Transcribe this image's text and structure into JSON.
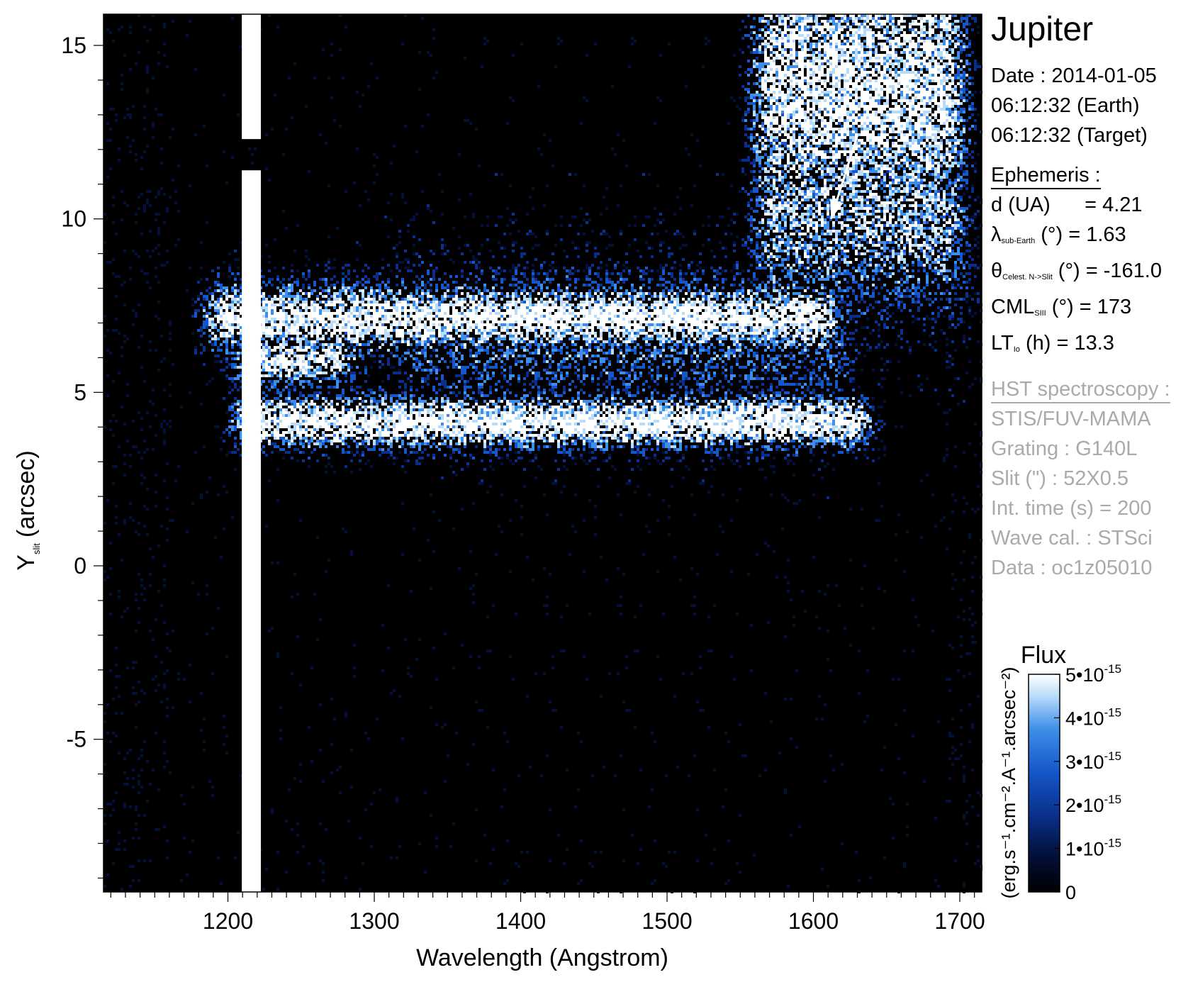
{
  "chart_data": {
    "type": "heatmap",
    "title": "Jupiter",
    "xlabel": "Wavelength (Angstrom)",
    "ylabel": "Y",
    "ylabel_sub": "slit",
    "ylabel_unit": "(arcsec)",
    "xlim": [
      1115,
      1715
    ],
    "ylim": [
      -9.4,
      15.9
    ],
    "x_ticks": [
      1200,
      1300,
      1400,
      1500,
      1600,
      1700
    ],
    "x_tick_labels": [
      "1200",
      "1300",
      "1400",
      "1500",
      "1600",
      "1700"
    ],
    "y_ticks": [
      15,
      10,
      5,
      0,
      -5
    ],
    "y_tick_labels": [
      "15",
      "10",
      "5",
      "0",
      "-5"
    ],
    "bands": [
      {
        "x0": 1190,
        "x1": 1650,
        "y": 4.2,
        "width": 0.55,
        "level": 1.0
      },
      {
        "x0": 1170,
        "x1": 1630,
        "y": 7.2,
        "width": 0.7,
        "level": 0.95
      },
      {
        "x0": 1190,
        "x1": 1300,
        "y": 6.0,
        "width": 0.6,
        "level": 0.85
      },
      {
        "x0": 1300,
        "x1": 1640,
        "y": 6.6,
        "width": 1.6,
        "level": 0.45
      },
      {
        "x0": 1545,
        "x1": 1715,
        "y": 13.8,
        "width": 3.2,
        "level": 0.9
      },
      {
        "x0": 1545,
        "x1": 1715,
        "y": 10.2,
        "width": 2.0,
        "level": 0.7
      }
    ],
    "lyman_alpha": {
      "x": 1216,
      "width": 13,
      "gap_y": [
        11.4,
        12.3
      ]
    },
    "arrow": {
      "from": [
        1630,
        12.4
      ],
      "to": [
        1612,
        10.0
      ]
    },
    "colorbar": {
      "title": "Flux",
      "unit": "(erg.s⁻¹.cm⁻².A⁻¹.arcsec⁻²)",
      "range": [
        0,
        5e-15
      ],
      "tick_labels": [
        {
          "mant": "5•10",
          "exp": "-15",
          "value": 5e-15
        },
        {
          "mant": "4•10",
          "exp": "-15",
          "value": 4e-15
        },
        {
          "mant": "3•10",
          "exp": "-15",
          "value": 3e-15
        },
        {
          "mant": "2•10",
          "exp": "-15",
          "value": 2e-15
        },
        {
          "mant": "1•10",
          "exp": "-15",
          "value": 1e-15
        },
        {
          "mant": "0",
          "exp": "",
          "value": 0
        }
      ],
      "colors": [
        "#000000",
        "#02103a",
        "#0a2f8a",
        "#1556c9",
        "#3f8fe8",
        "#b9dcfb",
        "#ffffff"
      ]
    }
  },
  "info": {
    "date_line": "Date : 2014-01-05",
    "earth_line": "06:12:32 (Earth)",
    "target_line": "06:12:32 (Target)",
    "ephemeris_header": "Ephemeris :",
    "d_line": "d (UA)      = 4.21",
    "lambda_sym": "λ",
    "lambda_sub": "sub-Earth",
    "lambda_rest": " (°)  = 1.63",
    "theta_sym": "θ",
    "theta_sub": "Celest. N->Slit",
    "theta_rest": " (°) = -161.0",
    "cml_sym": "CML",
    "cml_sub": "SIII",
    "cml_rest": " (°) = 173",
    "lt_sym": "LT",
    "lt_sub": "Io",
    "lt_rest": " (h) = 13.3",
    "hst_header": "HST spectroscopy :",
    "instrument": "STIS/FUV-MAMA",
    "grating": "Grating : G140L",
    "slit": "Slit (\") : 52X0.5",
    "int_time": "Int. time (s) = 200",
    "wave_cal": "Wave cal. : STSci",
    "dataset": "Data : oc1z05010"
  }
}
